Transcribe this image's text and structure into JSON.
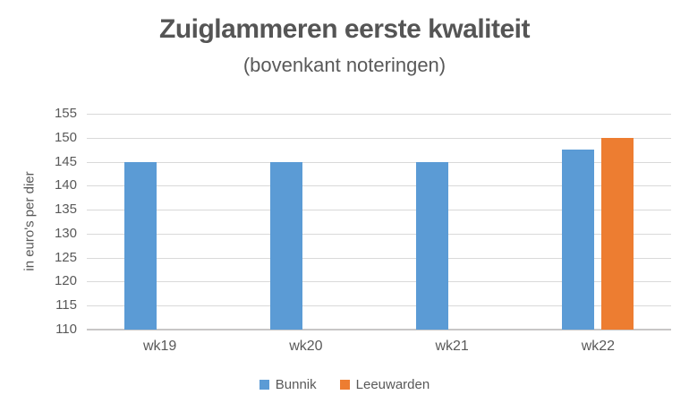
{
  "chart_data": {
    "type": "bar",
    "title": "Zuiglammeren eerste kwaliteit",
    "subtitle": "(bovenkant noteringen)",
    "ylabel": "in euro's per dier",
    "xlabel": "",
    "categories": [
      "wk19",
      "wk20",
      "wk21",
      "wk22"
    ],
    "series": [
      {
        "name": "Bunnik",
        "color": "#5b9bd5",
        "values": [
          145,
          145,
          145,
          147.5
        ]
      },
      {
        "name": "Leeuwarden",
        "color": "#ed7d31",
        "values": [
          null,
          null,
          null,
          150
        ]
      }
    ],
    "ylim": [
      110,
      155
    ],
    "ytick_step": 5,
    "grid": true,
    "legend_position": "bottom",
    "bar_baseline": 110
  },
  "colors": {
    "title_text": "#555555",
    "axis_text": "#595959",
    "gridline": "#d9d9d9",
    "axis_line": "#c8c6c6",
    "background": "#ffffff"
  }
}
